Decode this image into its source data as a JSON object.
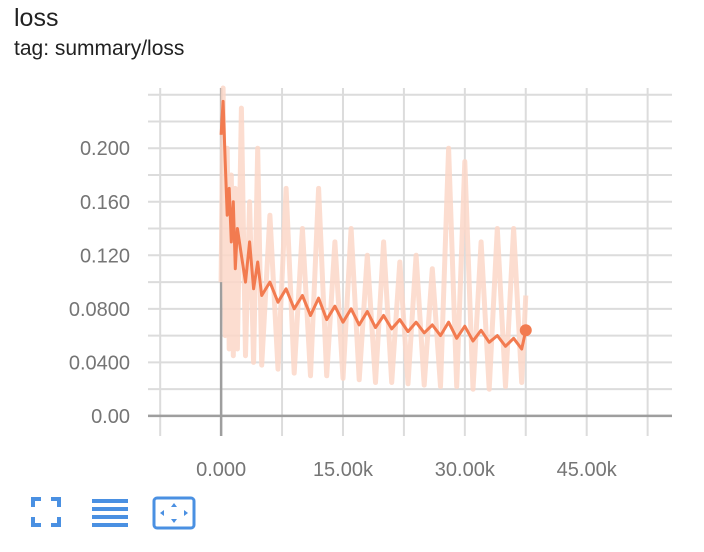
{
  "card": {
    "title": "loss",
    "subtitle": "tag: summary/loss"
  },
  "toolbar": {
    "icons": [
      "fullscreen-icon",
      "list-icon",
      "fit-domain-icon"
    ],
    "accent": "#4a90e2"
  },
  "chart_data": {
    "type": "line",
    "title": "loss",
    "xlabel": "",
    "ylabel": "",
    "xlim": [
      -9000,
      55500
    ],
    "ylim": [
      -0.015,
      0.245
    ],
    "x_ticks": [
      0,
      15000,
      30000,
      45000
    ],
    "x_tick_labels": [
      "0.000",
      "15.00k",
      "30.00k",
      "45.00k"
    ],
    "y_ticks": [
      0,
      0.04,
      0.08,
      0.12,
      0.16,
      0.2
    ],
    "y_tick_labels": [
      "0.00",
      "0.0400",
      "0.0800",
      "0.120",
      "0.160",
      "0.200"
    ],
    "grid": true,
    "legend": "none",
    "series": [
      {
        "smoothed": true,
        "color": "#f27b50",
        "x": [
          0,
          250,
          500,
          750,
          1000,
          1250,
          1500,
          1750,
          2000,
          2500,
          3000,
          3500,
          4000,
          4500,
          5000,
          6000,
          7000,
          8000,
          9000,
          10000,
          11000,
          12000,
          13000,
          14000,
          15000,
          16000,
          17000,
          18000,
          19000,
          20000,
          21000,
          22000,
          23000,
          24000,
          25000,
          26000,
          27000,
          28000,
          29000,
          30000,
          31000,
          32000,
          33000,
          34000,
          35000,
          36000,
          37000,
          37500
        ],
        "y": [
          0.21,
          0.235,
          0.19,
          0.15,
          0.17,
          0.13,
          0.16,
          0.11,
          0.14,
          0.12,
          0.1,
          0.13,
          0.095,
          0.115,
          0.09,
          0.1,
          0.085,
          0.095,
          0.08,
          0.09,
          0.075,
          0.088,
          0.072,
          0.082,
          0.07,
          0.08,
          0.068,
          0.078,
          0.066,
          0.075,
          0.065,
          0.072,
          0.063,
          0.07,
          0.062,
          0.068,
          0.06,
          0.07,
          0.058,
          0.067,
          0.056,
          0.064,
          0.055,
          0.06,
          0.052,
          0.058,
          0.05,
          0.064
        ]
      },
      {
        "smoothed": false,
        "color": "#fbd7c8",
        "x": [
          0,
          250,
          500,
          750,
          1000,
          1250,
          1500,
          1750,
          2000,
          2500,
          3000,
          3500,
          4000,
          4500,
          5000,
          6000,
          7000,
          8000,
          9000,
          10000,
          11000,
          12000,
          13000,
          14000,
          15000,
          16000,
          17000,
          18000,
          19000,
          20000,
          21000,
          22000,
          23000,
          24000,
          25000,
          26000,
          27000,
          28000,
          29000,
          30000,
          31000,
          32000,
          33000,
          34000,
          35000,
          36000,
          37000,
          37500
        ],
        "y": [
          0.1,
          0.245,
          0.06,
          0.2,
          0.05,
          0.18,
          0.045,
          0.17,
          0.05,
          0.23,
          0.045,
          0.16,
          0.04,
          0.2,
          0.038,
          0.15,
          0.035,
          0.17,
          0.032,
          0.14,
          0.03,
          0.17,
          0.03,
          0.13,
          0.028,
          0.14,
          0.027,
          0.12,
          0.025,
          0.13,
          0.025,
          0.115,
          0.024,
          0.12,
          0.023,
          0.11,
          0.022,
          0.2,
          0.022,
          0.19,
          0.02,
          0.13,
          0.02,
          0.14,
          0.022,
          0.14,
          0.025,
          0.09
        ]
      }
    ]
  }
}
